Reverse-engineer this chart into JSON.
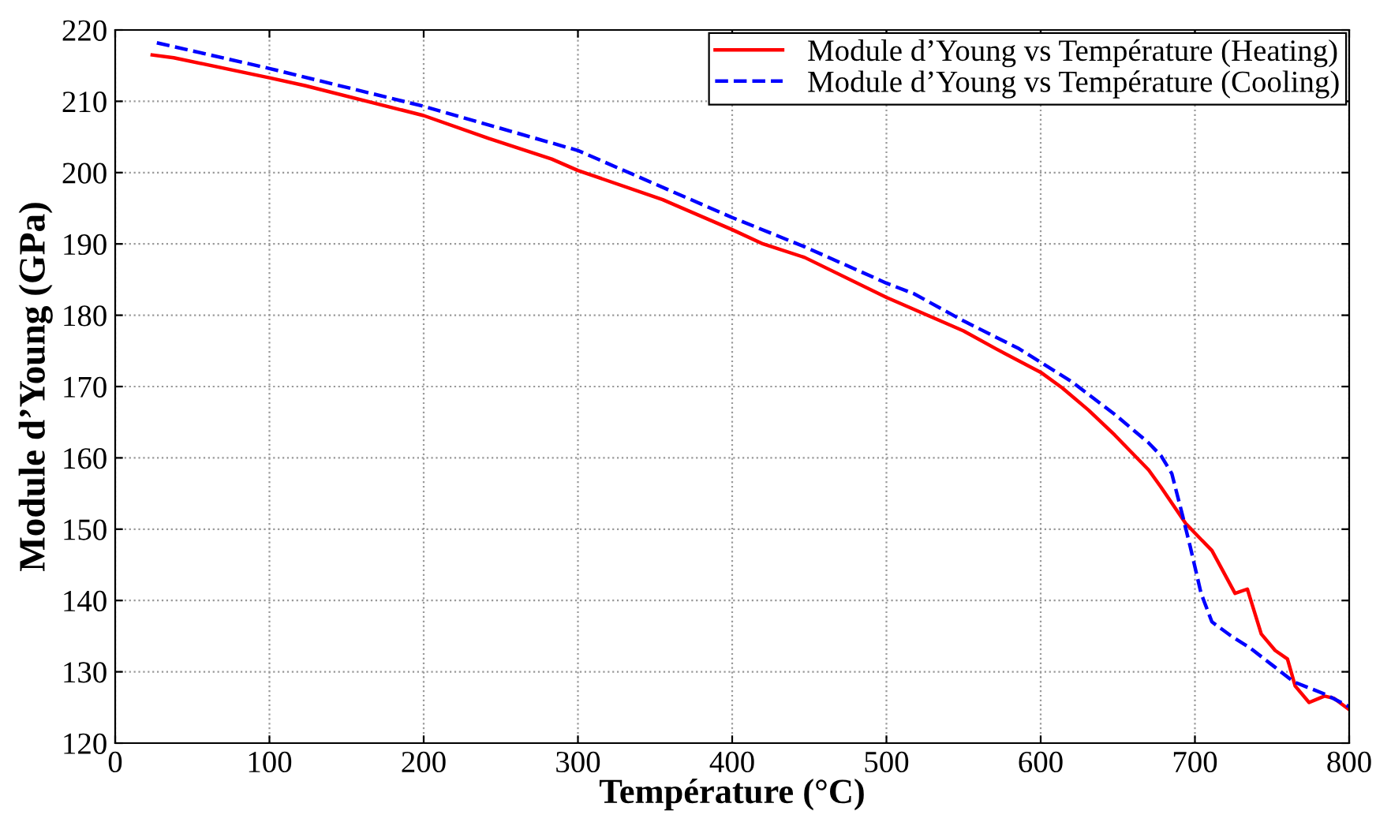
{
  "chart_data": {
    "type": "line",
    "xlabel": "Température (°C)",
    "ylabel": "Module d’Young (GPa)",
    "xlim": [
      0,
      800
    ],
    "ylim": [
      120,
      220
    ],
    "xticks": [
      0,
      100,
      200,
      300,
      400,
      500,
      600,
      700,
      800
    ],
    "yticks": [
      120,
      130,
      140,
      150,
      160,
      170,
      180,
      190,
      200,
      210,
      220
    ],
    "grid": true,
    "legend": "top right",
    "series": [
      {
        "name": "Module d’Young vs Température (Heating)",
        "color": "#ff0000",
        "line_style": "solid",
        "x": [
          24,
          38,
          100,
          123,
          200,
          242,
          283,
          300,
          355,
          400,
          420,
          447,
          500,
          550,
          571,
          600,
          614,
          631,
          648,
          670,
          678,
          694,
          711,
          726,
          734,
          743,
          752,
          760,
          765,
          774,
          784,
          790,
          800
        ],
        "values": [
          216.5,
          216.1,
          213.3,
          212.2,
          208,
          204.8,
          201.9,
          200.3,
          196.2,
          192,
          190,
          188.1,
          182.5,
          177.8,
          175.3,
          172,
          169.8,
          166.7,
          163.2,
          158.3,
          155.9,
          150.8,
          147,
          141,
          141.6,
          135.3,
          133,
          131.8,
          128,
          125.7,
          126.6,
          126.3,
          124.7
        ]
      },
      {
        "name": "Module d’Young vs Température (Cooling)",
        "color": "#0000ff",
        "line_style": "dashed",
        "x": [
          27,
          100,
          200,
          300,
          400,
          447,
          500,
          518,
          550,
          586,
          620,
          648,
          670,
          678,
          685,
          692,
          697,
          704,
          711,
          723,
          736,
          751,
          764,
          785,
          800
        ],
        "values": [
          218.2,
          214.6,
          209.3,
          203.1,
          193.7,
          189.6,
          184.5,
          183,
          179.2,
          175.3,
          170.7,
          166.1,
          162.1,
          160.3,
          157.8,
          151.9,
          147.5,
          141,
          137,
          135.1,
          133.3,
          130.8,
          128.6,
          126.8,
          125.1
        ]
      }
    ]
  }
}
